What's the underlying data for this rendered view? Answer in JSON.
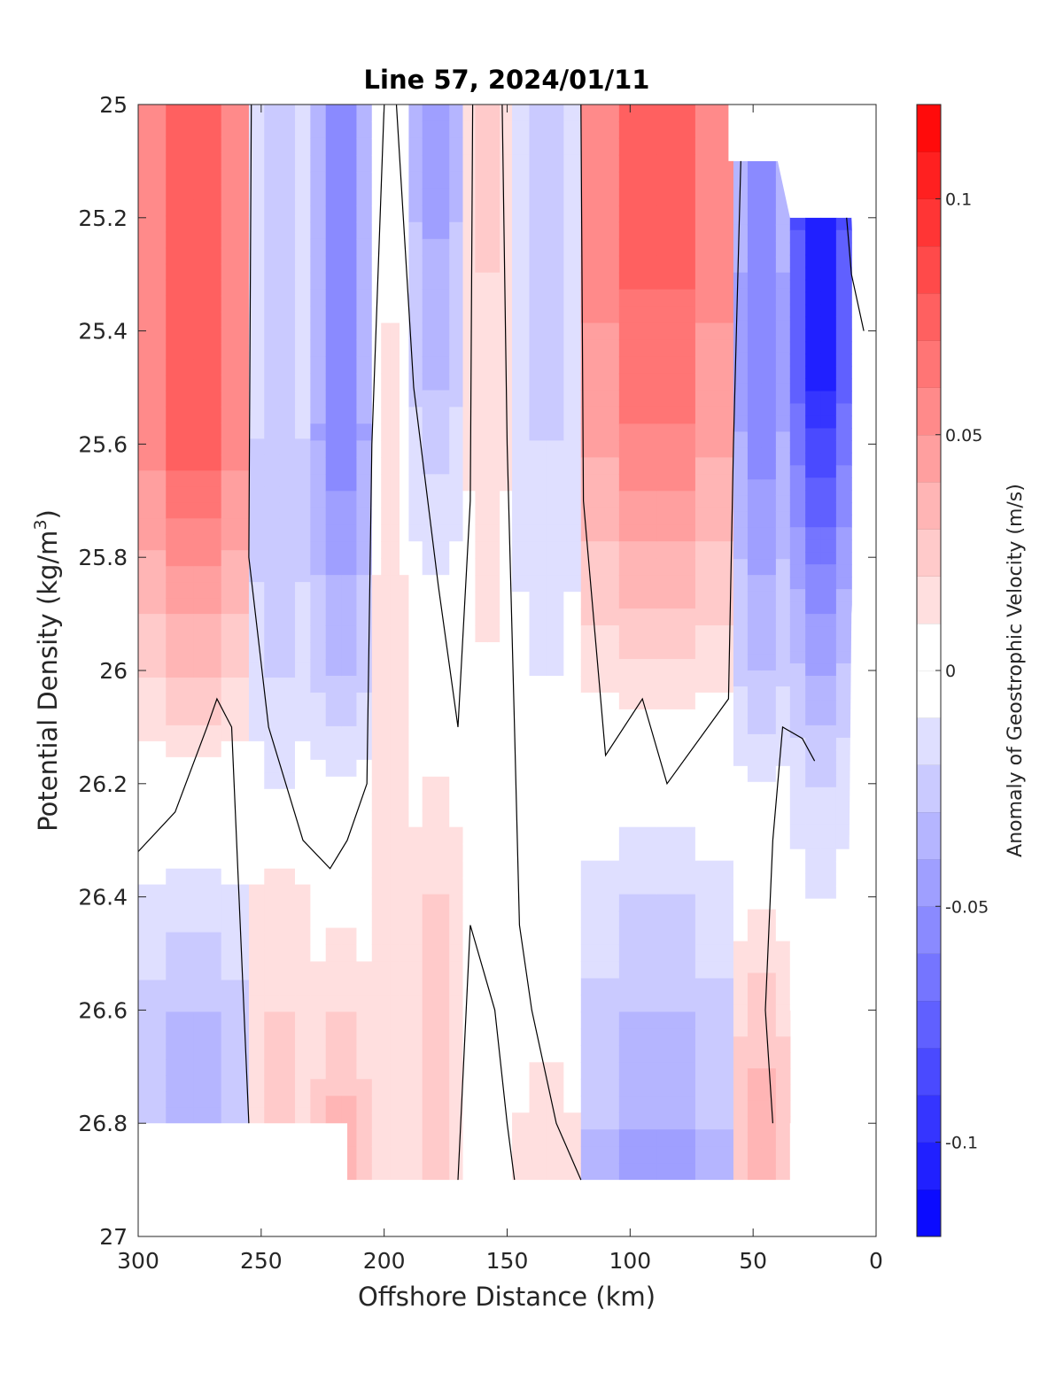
{
  "chart_data": {
    "type": "heatmap",
    "title": "Line 57, 2024/01/11",
    "xlabel": "Offshore Distance (km)",
    "ylabel_main": "Potential Density (kg/m",
    "ylabel_sup": "3",
    "ylabel_close": ")",
    "colorbar_label": "Anomaly of Geostrophic Velocity (m/s)",
    "xlim": [
      300,
      0
    ],
    "ylim": [
      25,
      27
    ],
    "x_reversed": true,
    "y_reversed": true,
    "x_ticks": [
      "300",
      "250",
      "200",
      "150",
      "100",
      "50",
      "0"
    ],
    "x_tick_values": [
      300,
      250,
      200,
      150,
      100,
      50,
      0
    ],
    "y_ticks": [
      "25",
      "25.2",
      "25.4",
      "25.6",
      "25.8",
      "26",
      "26.2",
      "26.4",
      "26.6",
      "26.8",
      "27"
    ],
    "y_tick_values": [
      25,
      25.2,
      25.4,
      25.6,
      25.8,
      26,
      26.2,
      26.4,
      26.6,
      26.8,
      27
    ],
    "colorbar_ticks": [
      "0.1",
      "0.05",
      "0",
      "-0.05",
      "-0.1"
    ],
    "colorbar_tick_values": [
      0.1,
      0.05,
      0,
      -0.05,
      -0.1
    ],
    "clim": [
      -0.12,
      0.12
    ],
    "colorbar_levels": 24,
    "colormap": {
      "negative": "#0000ff",
      "zero": "#ffffff",
      "positive": "#ff0000"
    },
    "grid": false,
    "zero_contour_color": "#000000",
    "data_bounds": {
      "y_bottom": 26.8,
      "y_bottom_inner": 26.9,
      "x_bottom_inner": [
        215,
        35
      ]
    },
    "bands": [
      {
        "x0": 300,
        "x1": 255,
        "profile": [
          {
            "y": 25.0,
            "v": 0.07
          },
          {
            "y": 25.6,
            "v": 0.075
          },
          {
            "y": 26.0,
            "v": 0.03
          },
          {
            "y": 26.25,
            "v": 0.0
          },
          {
            "y": 26.5,
            "v": -0.025
          },
          {
            "y": 26.8,
            "v": -0.04
          }
        ]
      },
      {
        "x0": 255,
        "x1": 230,
        "profile": [
          {
            "y": 25.0,
            "v": -0.02
          },
          {
            "y": 25.8,
            "v": -0.03
          },
          {
            "y": 26.2,
            "v": -0.01
          },
          {
            "y": 26.4,
            "v": 0.015
          },
          {
            "y": 26.8,
            "v": 0.025
          }
        ]
      },
      {
        "x0": 230,
        "x1": 205,
        "profile": [
          {
            "y": 25.0,
            "v": -0.05
          },
          {
            "y": 25.6,
            "v": -0.055
          },
          {
            "y": 26.0,
            "v": -0.03
          },
          {
            "y": 26.3,
            "v": 0.0
          },
          {
            "y": 26.6,
            "v": 0.02
          },
          {
            "y": 26.9,
            "v": 0.04
          }
        ]
      },
      {
        "x0": 205,
        "x1": 190,
        "profile": [
          {
            "y": 25.0,
            "v": 0.0
          },
          {
            "y": 25.4,
            "v": 0.01
          },
          {
            "y": 26.0,
            "v": 0.015
          },
          {
            "y": 26.9,
            "v": 0.02
          }
        ]
      },
      {
        "x0": 190,
        "x1": 168,
        "profile": [
          {
            "y": 25.0,
            "v": -0.05
          },
          {
            "y": 25.5,
            "v": -0.03
          },
          {
            "y": 26.0,
            "v": 0.0
          },
          {
            "y": 26.5,
            "v": 0.025
          },
          {
            "y": 26.9,
            "v": 0.02
          }
        ]
      },
      {
        "x0": 168,
        "x1": 148,
        "profile": [
          {
            "y": 25.0,
            "v": 0.025
          },
          {
            "y": 25.6,
            "v": 0.015
          },
          {
            "y": 26.3,
            "v": 0.005
          },
          {
            "y": 26.6,
            "v": 0.0
          },
          {
            "y": 26.9,
            "v": -0.01
          }
        ]
      },
      {
        "x0": 148,
        "x1": 120,
        "profile": [
          {
            "y": 25.0,
            "v": -0.02
          },
          {
            "y": 25.6,
            "v": -0.02
          },
          {
            "y": 26.0,
            "v": -0.01
          },
          {
            "y": 26.5,
            "v": 0.0
          },
          {
            "y": 26.9,
            "v": 0.02
          }
        ]
      },
      {
        "x0": 120,
        "x1": 58,
        "profile": [
          {
            "y": 25.0,
            "v": 0.08
          },
          {
            "y": 25.5,
            "v": 0.065
          },
          {
            "y": 25.9,
            "v": 0.03
          },
          {
            "y": 26.1,
            "v": 0.005
          },
          {
            "y": 26.4,
            "v": -0.02
          },
          {
            "y": 26.9,
            "v": -0.045
          }
        ]
      },
      {
        "x0": 58,
        "x1": 35,
        "profile": [
          {
            "y": 25.1,
            "v": -0.05
          },
          {
            "y": 25.5,
            "v": -0.06
          },
          {
            "y": 26.0,
            "v": -0.03
          },
          {
            "y": 26.3,
            "v": 0.0
          },
          {
            "y": 26.6,
            "v": 0.025
          },
          {
            "y": 26.9,
            "v": 0.04
          }
        ]
      },
      {
        "x0": 35,
        "x1": 10,
        "profile": [
          {
            "y": 25.2,
            "v": -0.11
          },
          {
            "y": 25.5,
            "v": -0.1
          },
          {
            "y": 25.9,
            "v": -0.05
          },
          {
            "y": 26.2,
            "v": -0.02
          },
          {
            "y": 26.6,
            "v": 0.0
          }
        ]
      }
    ]
  }
}
